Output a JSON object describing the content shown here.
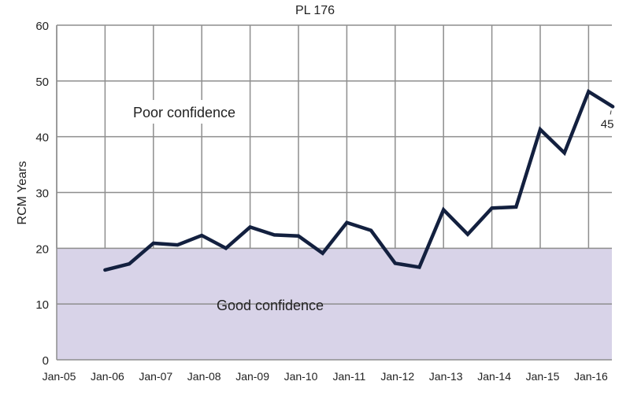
{
  "chart_data": {
    "type": "line",
    "title": "PL 176",
    "xlabel": "",
    "ylabel": "RCM Years",
    "ylim": [
      0,
      60
    ],
    "yticks": [
      0,
      10,
      20,
      30,
      40,
      50,
      60
    ],
    "xlim": [
      2005,
      2016.5
    ],
    "xticks": [
      2005,
      2006,
      2007,
      2008,
      2009,
      2010,
      2011,
      2012,
      2013,
      2014,
      2015,
      2016
    ],
    "xtick_labels": [
      "Jan-05",
      "Jan-06",
      "Jan-07",
      "Jan-08",
      "Jan-09",
      "Jan-10",
      "Jan-11",
      "Jan-12",
      "Jan-13",
      "Jan-14",
      "Jan-15",
      "Jan-16"
    ],
    "grid": true,
    "regions": [
      {
        "label": "Good confidence",
        "y_range": [
          0,
          20
        ],
        "color": "#d8d3e8"
      },
      {
        "label": "Poor confidence",
        "y_range": [
          20,
          60
        ],
        "color": "#ffffff"
      }
    ],
    "series": [
      {
        "name": "RCM Years",
        "color": "#13203f",
        "x": [
          2006,
          2006.5,
          2007,
          2007.5,
          2008,
          2008.5,
          2009,
          2009.5,
          2010,
          2010.5,
          2011,
          2011.5,
          2012,
          2012.5,
          2013,
          2013.5,
          2014,
          2014.5,
          2015,
          2015.5,
          2016,
          2016.5
        ],
        "values": [
          16.1,
          17.2,
          20.9,
          20.6,
          22.3,
          20.0,
          23.8,
          22.4,
          22.2,
          19.1,
          24.6,
          23.2,
          17.3,
          16.6,
          26.9,
          22.5,
          27.2,
          27.4,
          41.3,
          37.1,
          48.1,
          45.4
        ]
      }
    ],
    "annotations": [
      {
        "text": "45",
        "x": 2016.5,
        "y": 45
      }
    ]
  }
}
